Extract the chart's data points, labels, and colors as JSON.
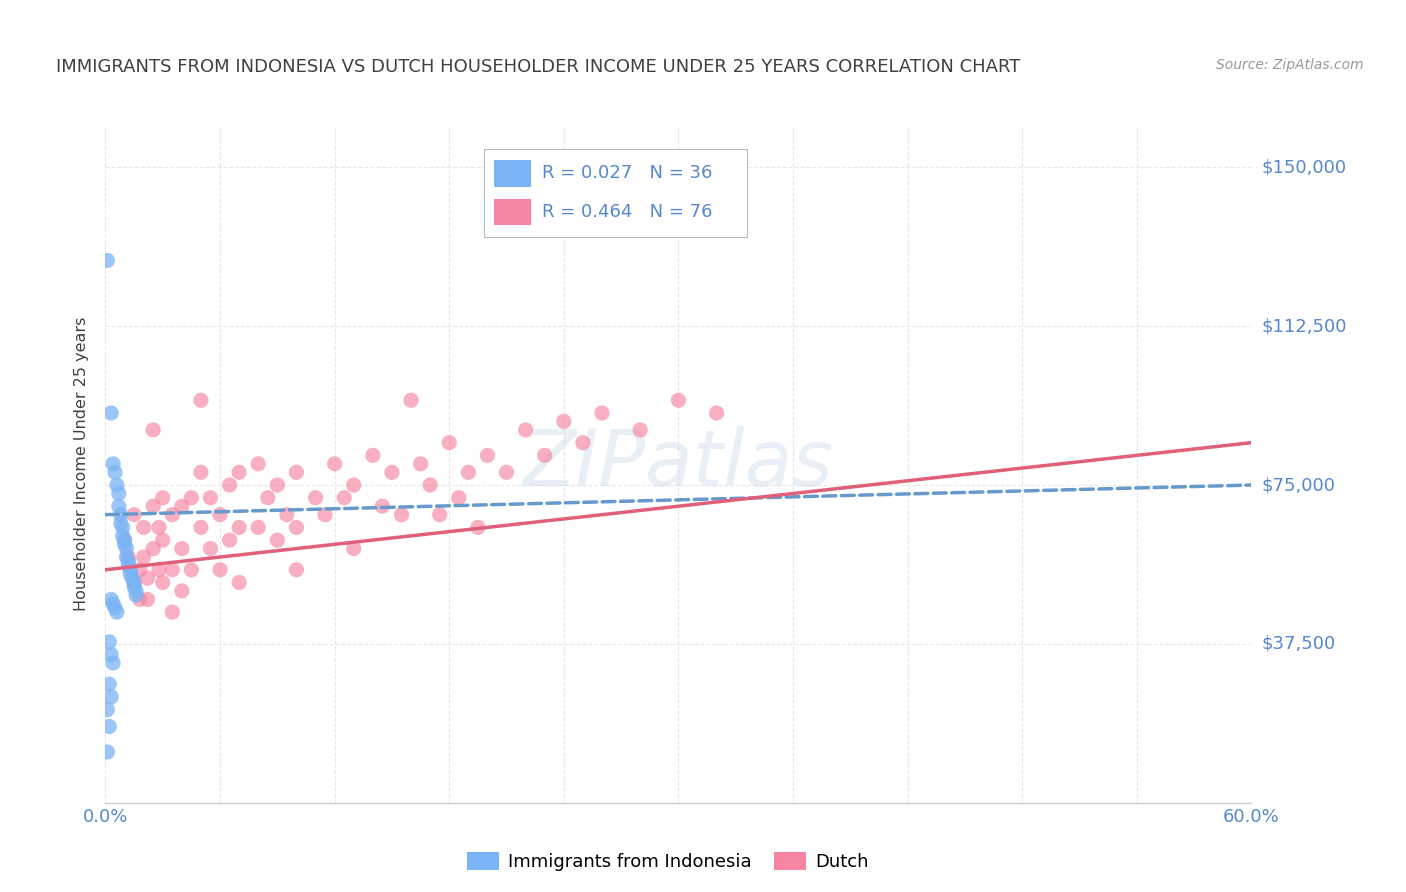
{
  "title": "IMMIGRANTS FROM INDONESIA VS DUTCH HOUSEHOLDER INCOME UNDER 25 YEARS CORRELATION CHART",
  "source": "Source: ZipAtlas.com",
  "ylabel": "Householder Income Under 25 years",
  "y_ticks": [
    0,
    37500,
    75000,
    112500,
    150000
  ],
  "y_tick_labels": [
    "",
    "$37,500",
    "$75,000",
    "$112,500",
    "$150,000"
  ],
  "xlim": [
    0.0,
    0.6
  ],
  "ylim": [
    0,
    160000
  ],
  "indonesia_color": "#7ab4f5",
  "dutch_color": "#f585a0",
  "indonesia_line_color": "#6699cc",
  "dutch_line_color": "#e0607a",
  "watermark": "ZIPatlas",
  "indonesia_points": [
    [
      0.001,
      128000
    ],
    [
      0.003,
      92000
    ],
    [
      0.004,
      80000
    ],
    [
      0.005,
      78000
    ],
    [
      0.006,
      75000
    ],
    [
      0.007,
      73000
    ],
    [
      0.007,
      70000
    ],
    [
      0.008,
      68000
    ],
    [
      0.008,
      66000
    ],
    [
      0.009,
      65000
    ],
    [
      0.009,
      63000
    ],
    [
      0.01,
      62000
    ],
    [
      0.01,
      61000
    ],
    [
      0.011,
      60000
    ],
    [
      0.011,
      58000
    ],
    [
      0.012,
      57000
    ],
    [
      0.012,
      56000
    ],
    [
      0.013,
      55000
    ],
    [
      0.013,
      54000
    ],
    [
      0.014,
      53000
    ],
    [
      0.015,
      52000
    ],
    [
      0.015,
      51000
    ],
    [
      0.016,
      50000
    ],
    [
      0.016,
      49000
    ],
    [
      0.003,
      48000
    ],
    [
      0.004,
      47000
    ],
    [
      0.005,
      46000
    ],
    [
      0.006,
      45000
    ],
    [
      0.002,
      38000
    ],
    [
      0.003,
      35000
    ],
    [
      0.004,
      33000
    ],
    [
      0.002,
      28000
    ],
    [
      0.003,
      25000
    ],
    [
      0.001,
      22000
    ],
    [
      0.002,
      18000
    ],
    [
      0.001,
      12000
    ]
  ],
  "dutch_points": [
    [
      0.01,
      62000
    ],
    [
      0.012,
      58000
    ],
    [
      0.015,
      68000
    ],
    [
      0.015,
      52000
    ],
    [
      0.018,
      55000
    ],
    [
      0.018,
      48000
    ],
    [
      0.02,
      65000
    ],
    [
      0.02,
      58000
    ],
    [
      0.022,
      53000
    ],
    [
      0.022,
      48000
    ],
    [
      0.025,
      88000
    ],
    [
      0.025,
      70000
    ],
    [
      0.025,
      60000
    ],
    [
      0.028,
      65000
    ],
    [
      0.028,
      55000
    ],
    [
      0.03,
      72000
    ],
    [
      0.03,
      62000
    ],
    [
      0.03,
      52000
    ],
    [
      0.035,
      68000
    ],
    [
      0.035,
      55000
    ],
    [
      0.035,
      45000
    ],
    [
      0.04,
      70000
    ],
    [
      0.04,
      60000
    ],
    [
      0.04,
      50000
    ],
    [
      0.045,
      72000
    ],
    [
      0.045,
      55000
    ],
    [
      0.05,
      95000
    ],
    [
      0.05,
      78000
    ],
    [
      0.05,
      65000
    ],
    [
      0.055,
      72000
    ],
    [
      0.055,
      60000
    ],
    [
      0.06,
      68000
    ],
    [
      0.06,
      55000
    ],
    [
      0.065,
      75000
    ],
    [
      0.065,
      62000
    ],
    [
      0.07,
      78000
    ],
    [
      0.07,
      65000
    ],
    [
      0.07,
      52000
    ],
    [
      0.08,
      80000
    ],
    [
      0.08,
      65000
    ],
    [
      0.085,
      72000
    ],
    [
      0.09,
      75000
    ],
    [
      0.09,
      62000
    ],
    [
      0.095,
      68000
    ],
    [
      0.1,
      78000
    ],
    [
      0.1,
      65000
    ],
    [
      0.1,
      55000
    ],
    [
      0.11,
      72000
    ],
    [
      0.115,
      68000
    ],
    [
      0.12,
      80000
    ],
    [
      0.125,
      72000
    ],
    [
      0.13,
      75000
    ],
    [
      0.13,
      60000
    ],
    [
      0.14,
      82000
    ],
    [
      0.145,
      70000
    ],
    [
      0.15,
      78000
    ],
    [
      0.155,
      68000
    ],
    [
      0.16,
      95000
    ],
    [
      0.165,
      80000
    ],
    [
      0.17,
      75000
    ],
    [
      0.175,
      68000
    ],
    [
      0.18,
      85000
    ],
    [
      0.185,
      72000
    ],
    [
      0.19,
      78000
    ],
    [
      0.195,
      65000
    ],
    [
      0.2,
      82000
    ],
    [
      0.21,
      78000
    ],
    [
      0.22,
      88000
    ],
    [
      0.23,
      82000
    ],
    [
      0.24,
      90000
    ],
    [
      0.25,
      85000
    ],
    [
      0.26,
      92000
    ],
    [
      0.28,
      88000
    ],
    [
      0.3,
      95000
    ],
    [
      0.32,
      92000
    ]
  ],
  "background_color": "#ffffff",
  "grid_color": "#e8e8e8",
  "title_color": "#404040",
  "tick_label_color": "#5588cc"
}
